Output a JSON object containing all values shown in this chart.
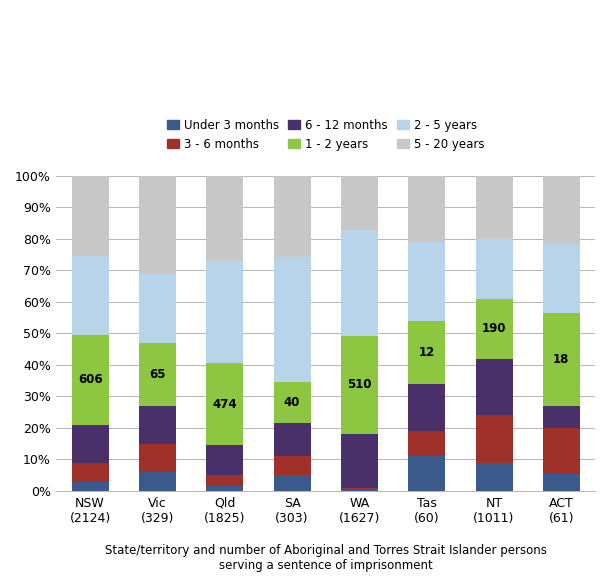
{
  "categories": [
    "NSW\n(2124)",
    "Vic\n(329)",
    "Qld\n(1825)",
    "SA\n(303)",
    "WA\n(1627)",
    "Tas\n(60)",
    "NT\n(1011)",
    "ACT\n(61)"
  ],
  "segments": {
    "Under 3 months": [
      3.0,
      6.0,
      1.5,
      5.0,
      0.5,
      11.0,
      9.0,
      5.5
    ],
    "3 - 6 months": [
      6.0,
      9.0,
      3.5,
      6.0,
      0.5,
      8.0,
      15.0,
      14.5
    ],
    "6 - 12 months": [
      12.0,
      12.0,
      9.5,
      10.5,
      17.0,
      15.0,
      18.0,
      7.0
    ],
    "1 - 2 years": [
      28.5,
      19.8,
      26.0,
      13.2,
      31.3,
      20.0,
      18.8,
      29.5
    ],
    "2 - 5 years": [
      25.0,
      22.0,
      32.5,
      39.5,
      33.5,
      25.0,
      19.0,
      22.0
    ],
    "5 - 20 years": [
      25.5,
      31.2,
      27.0,
      25.8,
      17.2,
      21.0,
      20.2,
      21.5
    ]
  },
  "green_labels": {
    "NSW\n(2124)": "606",
    "Vic\n(329)": "65",
    "Qld\n(1825)": "474",
    "SA\n(303)": "40",
    "WA\n(1627)": "510",
    "Tas\n(60)": "12",
    "NT\n(1011)": "190",
    "ACT\n(61)": "18"
  },
  "colors": {
    "Under 3 months": "#3a5a8c",
    "3 - 6 months": "#a0312a",
    "6 - 12 months": "#4a3068",
    "1 - 2 years": "#8dc641",
    "2 - 5 years": "#b8d4ea",
    "5 - 20 years": "#c8c8c8"
  },
  "legend_row1": [
    "Under 3 months",
    "3 - 6 months",
    "6 - 12 months"
  ],
  "legend_row2": [
    "1 - 2 years",
    "2 - 5 years",
    "5 - 20 years"
  ],
  "legend_order": [
    "Under 3 months",
    "3 - 6 months",
    "6 - 12 months",
    "1 - 2 years",
    "2 - 5 years",
    "5 - 20 years"
  ],
  "xlabel": "State/territory and number of Aboriginal and Torres Strait Islander persons\nserving a sentence of imprisonment",
  "ylim": [
    0,
    100
  ],
  "yticks": [
    0,
    10,
    20,
    30,
    40,
    50,
    60,
    70,
    80,
    90,
    100
  ],
  "ytick_labels": [
    "0%",
    "10%",
    "20%",
    "30%",
    "40%",
    "50%",
    "60%",
    "70%",
    "80%",
    "90%",
    "100%"
  ]
}
